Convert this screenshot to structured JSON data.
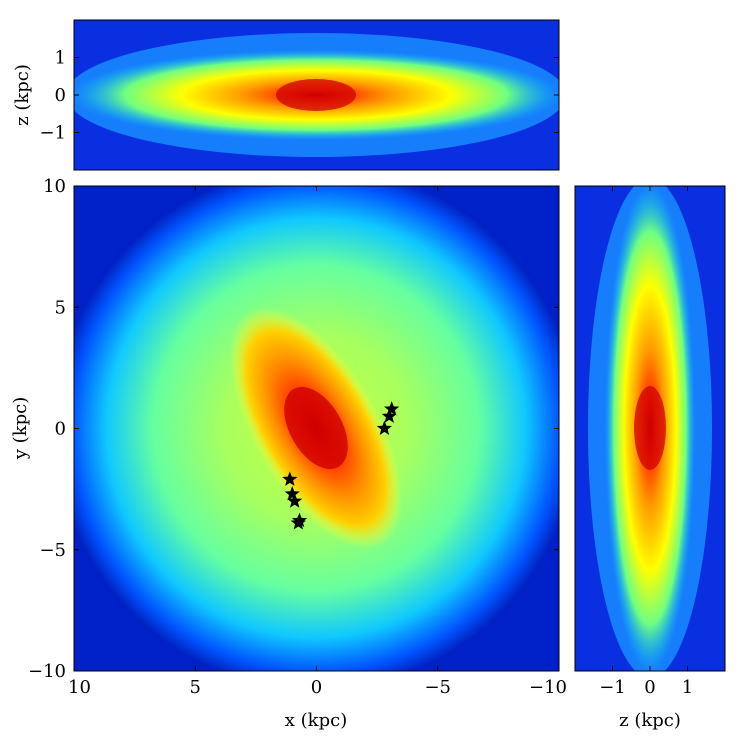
{
  "chart_data": [
    {
      "panel": "xz",
      "type": "heatmap",
      "xlabel": "",
      "ylabel": "z (kpc)",
      "xlim": [
        10,
        -10
      ],
      "ylim": [
        -2,
        2
      ],
      "yticks": [
        1,
        0,
        -1
      ],
      "ytick_labels": [
        "1",
        "0",
        "−1"
      ],
      "colormap": [
        "#00008f",
        "#0033ff",
        "#00c8ff",
        "#7dff7a",
        "#ffff00",
        "#ff8c00",
        "#d40000",
        "#800000"
      ]
    },
    {
      "panel": "xy",
      "type": "heatmap",
      "xlabel": "x (kpc)",
      "ylabel": "y (kpc)",
      "xlim": [
        10,
        -10
      ],
      "ylim": [
        -10,
        10
      ],
      "xticks": [
        10,
        5,
        0,
        -5,
        -10
      ],
      "xtick_labels": [
        "10",
        "5",
        "0",
        "−5",
        "−10"
      ],
      "yticks": [
        10,
        5,
        0,
        -5,
        -10
      ],
      "ytick_labels": [
        "10",
        "5",
        "0",
        "−5",
        "−10"
      ],
      "colormap": [
        "#00008f",
        "#0033ff",
        "#00c8ff",
        "#7dff7a",
        "#ffff00",
        "#ff8c00",
        "#d40000",
        "#800000"
      ],
      "overlay": {
        "type": "scatter",
        "marker": "star",
        "color": "#000000",
        "points": [
          {
            "x": -2.8,
            "y": 0.0
          },
          {
            "x": -3.0,
            "y": 0.5
          },
          {
            "x": -3.1,
            "y": 0.8
          },
          {
            "x": 1.1,
            "y": -2.1
          },
          {
            "x": 1.0,
            "y": -2.7
          },
          {
            "x": 0.9,
            "y": -3.0
          },
          {
            "x": 0.7,
            "y": -3.8
          },
          {
            "x": 0.75,
            "y": -3.9
          }
        ]
      }
    },
    {
      "panel": "zy",
      "type": "heatmap",
      "xlabel": "z (kpc)",
      "ylabel": "",
      "xlim": [
        -2,
        2
      ],
      "ylim": [
        -10,
        10
      ],
      "xticks": [
        -1,
        0,
        1
      ],
      "xtick_labels": [
        "−1",
        "0",
        "1"
      ],
      "colormap": [
        "#00008f",
        "#0033ff",
        "#00c8ff",
        "#7dff7a",
        "#ffff00",
        "#ff8c00",
        "#d40000",
        "#800000"
      ]
    }
  ]
}
